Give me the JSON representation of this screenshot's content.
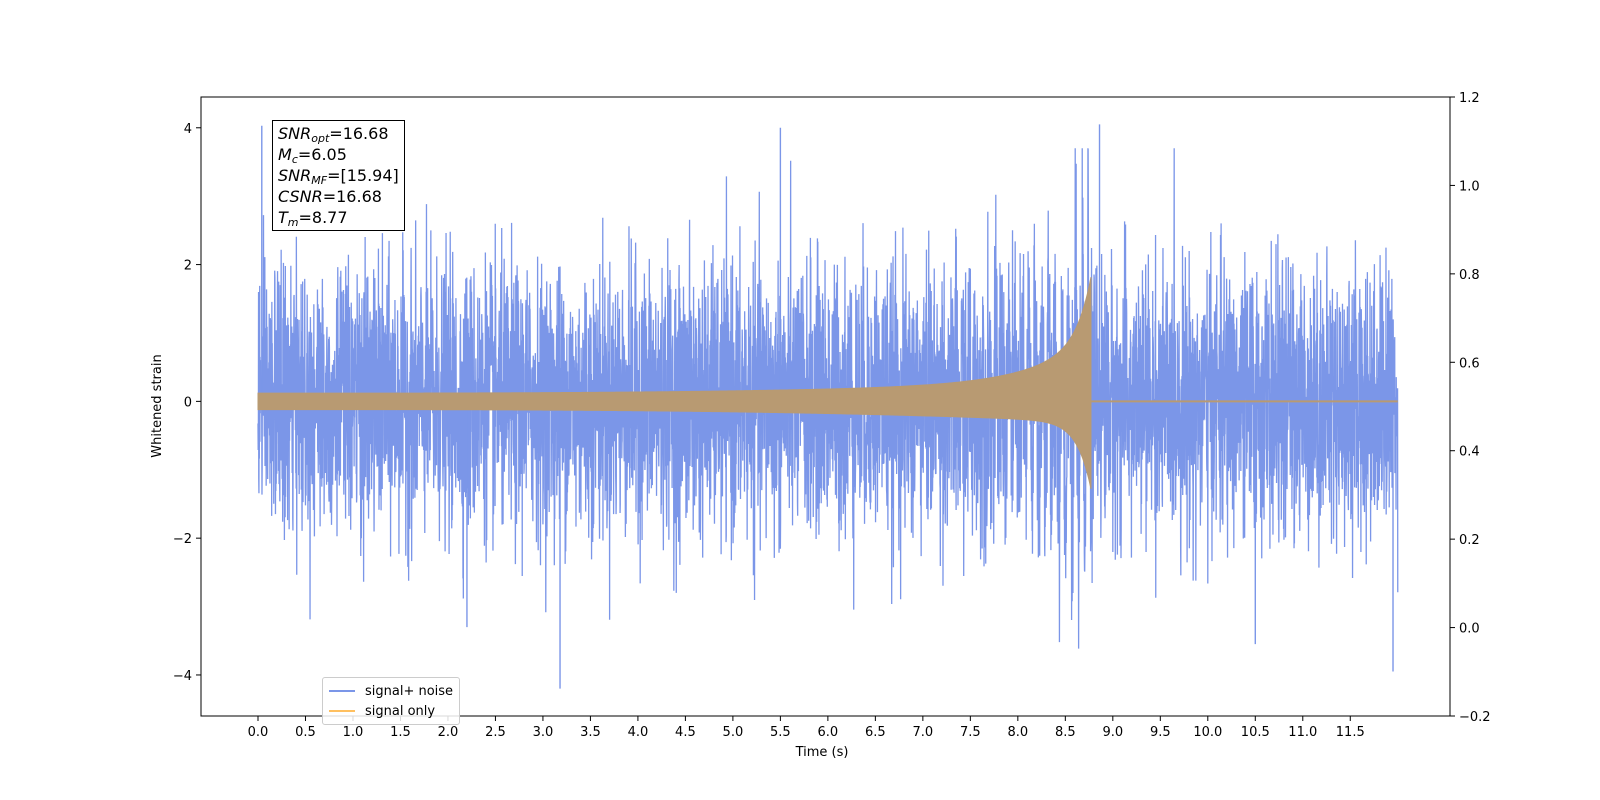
{
  "chart_data": {
    "type": "line",
    "xlabel": "Time (s)",
    "ylabel": "Whitened strain",
    "x_ticks": [
      "0.0",
      "0.5",
      "1.0",
      "1.5",
      "2.0",
      "2.5",
      "3.0",
      "3.5",
      "4.0",
      "4.5",
      "5.0",
      "5.5",
      "6.0",
      "6.5",
      "7.0",
      "7.5",
      "8.0",
      "8.5",
      "9.0",
      "9.5",
      "10.0",
      "10.5",
      "11.0",
      "11.5"
    ],
    "y_ticks_left": [
      "4",
      "2",
      "0",
      "−2",
      "−4"
    ],
    "y_ticks_right": [
      "1.2",
      "1.0",
      "0.8",
      "0.6",
      "0.4",
      "0.2",
      "0.0",
      "−0.2"
    ],
    "xlim": [
      -0.6,
      12.55
    ],
    "ylim_left": [
      -4.6,
      4.45
    ],
    "ylim_right": [
      -0.2,
      1.2
    ],
    "merger_time": 8.77,
    "signal_end_time": 12.0,
    "series": [
      {
        "name": "signal+ noise",
        "color": "#7b96e8",
        "axis": "left",
        "kind": "noise",
        "notable_peaks": [
          [
            0.04,
            4.03
          ],
          [
            3.18,
            -4.2
          ],
          [
            5.5,
            4.0
          ],
          [
            8.86,
            4.05
          ],
          [
            11.95,
            -3.95
          ],
          [
            2.2,
            -3.3
          ],
          [
            10.5,
            -3.55
          ]
        ]
      },
      {
        "name": "signal only",
        "color": "#ffc060",
        "axis": "left",
        "kind": "chirp",
        "amplitude_start": 0.12,
        "amplitude_peak_up": 1.88,
        "amplitude_peak_down": -1.28
      }
    ],
    "annotation": {
      "snr_opt": "16.68",
      "mc": "6.05",
      "snr_mf": "[15.94]",
      "csnr": "16.68",
      "tm": "8.77"
    },
    "legend_location": "lower-left"
  }
}
